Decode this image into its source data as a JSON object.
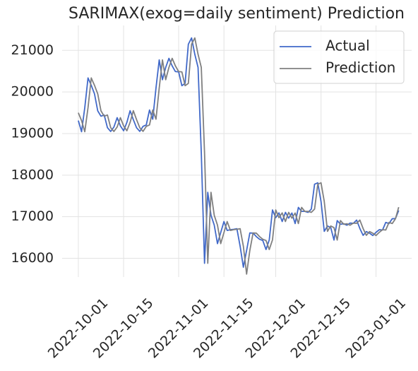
{
  "chart_data": {
    "type": "line",
    "title": "SARIMAX(exog=daily sentiment) Prediction",
    "x": [
      "2022-10-01",
      "2022-10-02",
      "2022-10-03",
      "2022-10-04",
      "2022-10-05",
      "2022-10-06",
      "2022-10-07",
      "2022-10-08",
      "2022-10-09",
      "2022-10-10",
      "2022-10-11",
      "2022-10-12",
      "2022-10-13",
      "2022-10-14",
      "2022-10-15",
      "2022-10-16",
      "2022-10-17",
      "2022-10-18",
      "2022-10-19",
      "2022-10-20",
      "2022-10-21",
      "2022-10-22",
      "2022-10-23",
      "2022-10-24",
      "2022-10-25",
      "2022-10-26",
      "2022-10-27",
      "2022-10-28",
      "2022-10-29",
      "2022-10-30",
      "2022-10-31",
      "2022-11-01",
      "2022-11-02",
      "2022-11-03",
      "2022-11-04",
      "2022-11-05",
      "2022-11-06",
      "2022-11-07",
      "2022-11-08",
      "2022-11-09",
      "2022-11-10",
      "2022-11-11",
      "2022-11-12",
      "2022-11-13",
      "2022-11-14",
      "2022-11-15",
      "2022-11-16",
      "2022-11-17",
      "2022-11-18",
      "2022-11-19",
      "2022-11-20",
      "2022-11-21",
      "2022-11-22",
      "2022-11-23",
      "2022-11-24",
      "2022-11-25",
      "2022-11-26",
      "2022-11-27",
      "2022-11-28",
      "2022-11-29",
      "2022-11-30",
      "2022-12-01",
      "2022-12-02",
      "2022-12-03",
      "2022-12-04",
      "2022-12-05",
      "2022-12-06",
      "2022-12-07",
      "2022-12-08",
      "2022-12-09",
      "2022-12-10",
      "2022-12-11",
      "2022-12-12",
      "2022-12-13",
      "2022-12-14",
      "2022-12-15",
      "2022-12-16",
      "2022-12-17",
      "2022-12-18",
      "2022-12-19",
      "2022-12-20",
      "2022-12-21",
      "2022-12-22",
      "2022-12-23",
      "2022-12-24",
      "2022-12-25",
      "2022-12-26",
      "2022-12-27",
      "2022-12-28",
      "2022-12-29",
      "2022-12-30",
      "2022-12-31",
      "2023-01-01",
      "2023-01-02",
      "2023-01-03",
      "2023-01-04",
      "2023-01-05",
      "2023-01-06",
      "2023-01-07",
      "2023-01-08"
    ],
    "series": [
      {
        "name": "Actual",
        "color": "#4169c9",
        "values": [
          19312,
          19045,
          19624,
          20337,
          20160,
          19955,
          19546,
          19417,
          19446,
          19141,
          19051,
          19157,
          19382,
          19185,
          19067,
          19268,
          19550,
          19334,
          19139,
          19053,
          19172,
          19208,
          19567,
          19345,
          20095,
          20771,
          20295,
          20591,
          20809,
          20627,
          20491,
          20483,
          20151,
          20207,
          21148,
          21299,
          20905,
          20591,
          18541,
          15880,
          17586,
          17034,
          16799,
          16353,
          16618,
          16884,
          16670,
          16688,
          16697,
          16712,
          16291,
          15787,
          16189,
          16610,
          16605,
          16522,
          16458,
          16428,
          16212,
          16442,
          17163,
          16977,
          17092,
          16885,
          17105,
          16966,
          17089,
          16836,
          17224,
          17128,
          17128,
          17105,
          17184,
          17781,
          17815,
          17365,
          16648,
          16777,
          16739,
          16439,
          16907,
          16818,
          16831,
          16796,
          16847,
          16842,
          16919,
          16717,
          16552,
          16642,
          16603,
          16548,
          16625,
          16688,
          16680,
          16863,
          16836,
          16951,
          16955,
          17150
        ]
      },
      {
        "name": "Prediction",
        "color": "#808080",
        "values": [
          19500,
          19312,
          19045,
          19624,
          20337,
          20160,
          19955,
          19546,
          19417,
          19446,
          19141,
          19051,
          19157,
          19382,
          19185,
          19067,
          19268,
          19550,
          19334,
          19139,
          19053,
          19172,
          19208,
          19567,
          19345,
          20095,
          20771,
          20295,
          20591,
          20809,
          20627,
          20491,
          20483,
          20151,
          20207,
          21148,
          21299,
          20905,
          20591,
          18541,
          15880,
          17586,
          17034,
          16799,
          16353,
          16618,
          16884,
          16670,
          16688,
          16697,
          16712,
          16291,
          15620,
          16189,
          16610,
          16605,
          16522,
          16458,
          16428,
          16212,
          16442,
          17163,
          16977,
          17092,
          16885,
          17105,
          16966,
          17089,
          16836,
          17224,
          17128,
          17128,
          17105,
          17184,
          17781,
          17815,
          17365,
          16648,
          16777,
          16739,
          16439,
          16907,
          16818,
          16831,
          16796,
          16847,
          16842,
          16919,
          16717,
          16552,
          16642,
          16603,
          16548,
          16625,
          16688,
          16680,
          16863,
          16836,
          16951,
          17230
        ]
      }
    ],
    "xlim": [
      "2022-09-26",
      "2023-01-12"
    ],
    "xticks": [
      "2022-10-01",
      "2022-10-15",
      "2022-11-01",
      "2022-11-15",
      "2022-12-01",
      "2022-12-15",
      "2023-01-01"
    ],
    "ylim": [
      15550,
      21600
    ],
    "yticks": [
      16000,
      17000,
      18000,
      19000,
      20000,
      21000
    ],
    "grid": true,
    "legend": "upper right"
  }
}
